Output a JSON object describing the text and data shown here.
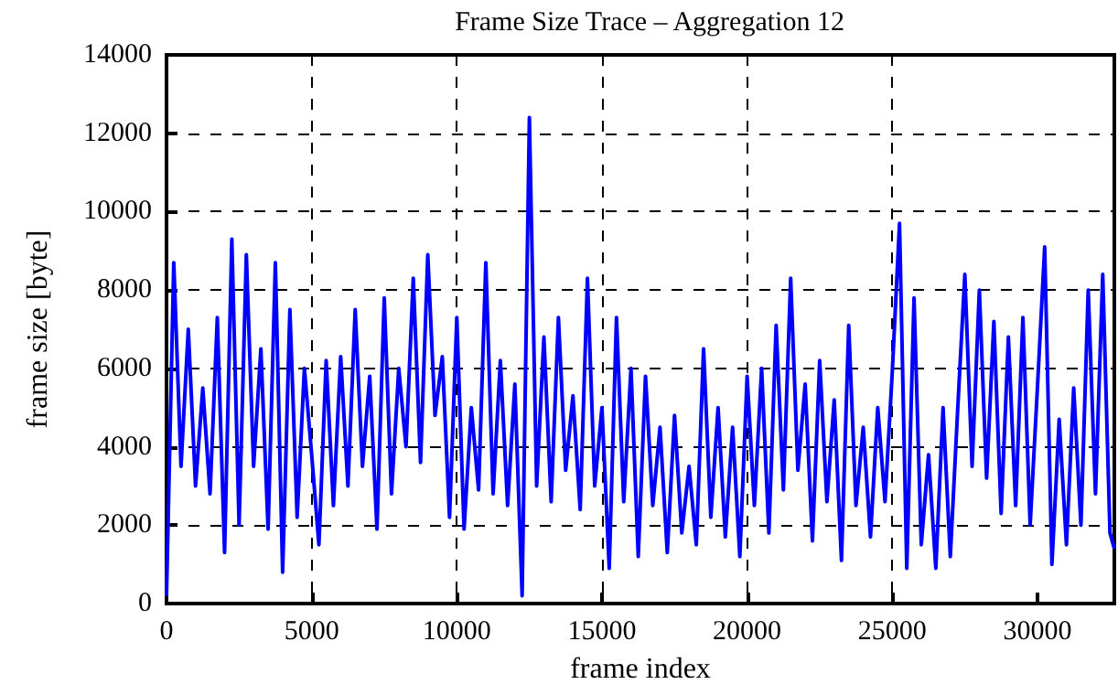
{
  "chart_data": {
    "type": "line",
    "title": "Frame Size Trace – Aggregation 12",
    "xlabel": "frame index",
    "ylabel": "frame size [byte]",
    "xlim": [
      0,
      32650
    ],
    "xticks": [
      0,
      5000,
      10000,
      15000,
      20000,
      25000,
      30000
    ],
    "ylim": [
      0,
      14000
    ],
    "yticks": [
      0,
      2000,
      4000,
      6000,
      8000,
      10000,
      12000,
      14000
    ],
    "grid": true,
    "marker": "none",
    "line_style": "solid",
    "series": [
      {
        "color": "#0000ff",
        "x": [
          0,
          250,
          500,
          750,
          1000,
          1250,
          1500,
          1750,
          2000,
          2250,
          2500,
          2750,
          3000,
          3250,
          3500,
          3750,
          4000,
          4250,
          4500,
          4750,
          5000,
          5250,
          5500,
          5750,
          6000,
          6250,
          6500,
          6750,
          7000,
          7250,
          7500,
          7750,
          8000,
          8250,
          8500,
          8750,
          9000,
          9250,
          9500,
          9750,
          10000,
          10250,
          10500,
          10750,
          11000,
          11250,
          11500,
          11750,
          12000,
          12250,
          12500,
          12750,
          13000,
          13250,
          13500,
          13750,
          14000,
          14250,
          14500,
          14750,
          15000,
          15250,
          15500,
          15750,
          16000,
          16250,
          16500,
          16750,
          17000,
          17250,
          17500,
          17750,
          18000,
          18250,
          18500,
          18750,
          19000,
          19250,
          19500,
          19750,
          20000,
          20250,
          20500,
          20750,
          21000,
          21250,
          21500,
          21750,
          22000,
          22250,
          22500,
          22750,
          23000,
          23250,
          23500,
          23750,
          24000,
          24250,
          24500,
          24750,
          25000,
          25250,
          25500,
          25750,
          26000,
          26250,
          26500,
          26750,
          27000,
          27250,
          27500,
          27750,
          28000,
          28250,
          28500,
          28750,
          29000,
          29250,
          29500,
          29750,
          30000,
          30250,
          30500,
          30750,
          31000,
          31250,
          31500,
          31750,
          32000,
          32250,
          32500,
          32650
        ],
        "values": [
          200,
          8700,
          3500,
          7000,
          3000,
          5500,
          2800,
          7300,
          1300,
          9300,
          2000,
          8900,
          3500,
          6500,
          1900,
          8700,
          800,
          7500,
          2200,
          6000,
          3800,
          1500,
          6200,
          2500,
          6300,
          3000,
          7500,
          3500,
          5800,
          1900,
          7800,
          2800,
          6000,
          4000,
          8300,
          3600,
          8900,
          4800,
          6300,
          2200,
          7300,
          1900,
          5000,
          2900,
          8700,
          2800,
          6200,
          2500,
          5600,
          200,
          12400,
          3000,
          6800,
          2600,
          7300,
          3400,
          5300,
          2400,
          8300,
          3000,
          5000,
          900,
          7300,
          2600,
          6000,
          1200,
          5800,
          2500,
          4500,
          1300,
          4800,
          1800,
          3500,
          1500,
          6500,
          2200,
          5000,
          1700,
          4500,
          1200,
          5800,
          2500,
          6000,
          1800,
          7100,
          2900,
          8300,
          3400,
          5600,
          1600,
          6200,
          2600,
          5200,
          1100,
          7100,
          2500,
          4500,
          1700,
          5000,
          2600,
          5900,
          9700,
          900,
          7800,
          1500,
          3800,
          900,
          5000,
          1200,
          4900,
          8400,
          3500,
          8000,
          3200,
          7200,
          2300,
          6800,
          2500,
          7300,
          2000,
          5500,
          9100,
          1000,
          4700,
          1500,
          5500,
          2000,
          8000,
          2800,
          8400,
          1800,
          1400
        ]
      }
    ]
  }
}
